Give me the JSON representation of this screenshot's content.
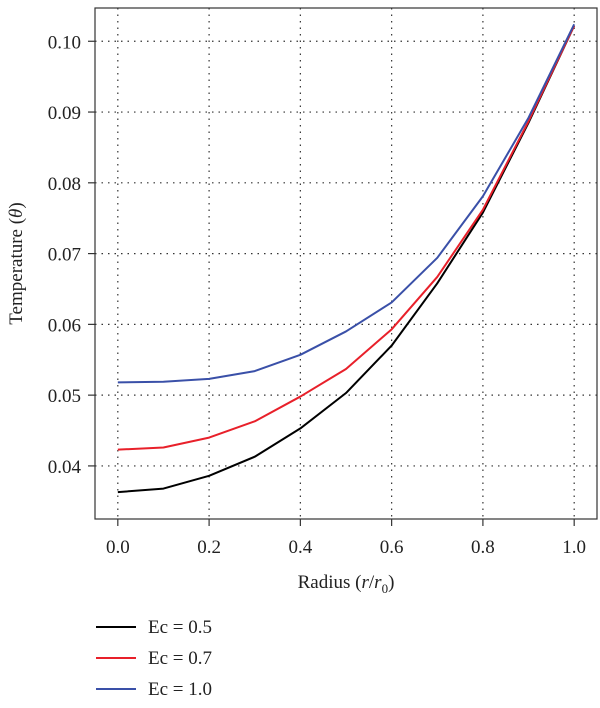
{
  "chart_data": {
    "type": "line",
    "title": "",
    "xlabel": {
      "prefix": "Radius (",
      "var": "r",
      "slash": "/",
      "var2": "r",
      "sub": "0",
      "suffix": ")"
    },
    "ylabel": {
      "prefix": "Temperature (",
      "var": "θ",
      "suffix": ")"
    },
    "xlim": [
      -0.05,
      1.05
    ],
    "ylim": [
      0.0325,
      0.1047
    ],
    "xticks": [
      0.0,
      0.2,
      0.4,
      0.6,
      0.8,
      1.0
    ],
    "xtick_labels": [
      "0.0",
      "0.2",
      "0.4",
      "0.6",
      "0.8",
      "1.0"
    ],
    "yticks": [
      0.04,
      0.05,
      0.06,
      0.07,
      0.08,
      0.09,
      0.1
    ],
    "ytick_labels": [
      "0.04",
      "0.05",
      "0.06",
      "0.07",
      "0.08",
      "0.09",
      "0.10"
    ],
    "grid": true,
    "legend_placement": "below",
    "x": [
      0.0,
      0.1,
      0.2,
      0.3,
      0.4,
      0.5,
      0.6,
      0.7,
      0.8,
      0.9,
      1.0
    ],
    "series": [
      {
        "name": "Ec = 0.5",
        "color": "#000000",
        "values": [
          0.0363,
          0.0368,
          0.0386,
          0.0413,
          0.0453,
          0.0503,
          0.057,
          0.0658,
          0.0758,
          0.0885,
          0.1022
        ]
      },
      {
        "name": "Ec = 0.7",
        "color": "#e8202a",
        "values": [
          0.0423,
          0.0426,
          0.044,
          0.0463,
          0.0498,
          0.0537,
          0.0593,
          0.0667,
          0.0762,
          0.0887,
          0.1022
        ]
      },
      {
        "name": "Ec = 1.0",
        "color": "#3a50a8",
        "values": [
          0.0518,
          0.0519,
          0.0523,
          0.0534,
          0.0557,
          0.059,
          0.0631,
          0.0694,
          0.0781,
          0.0892,
          0.1024
        ]
      }
    ]
  }
}
